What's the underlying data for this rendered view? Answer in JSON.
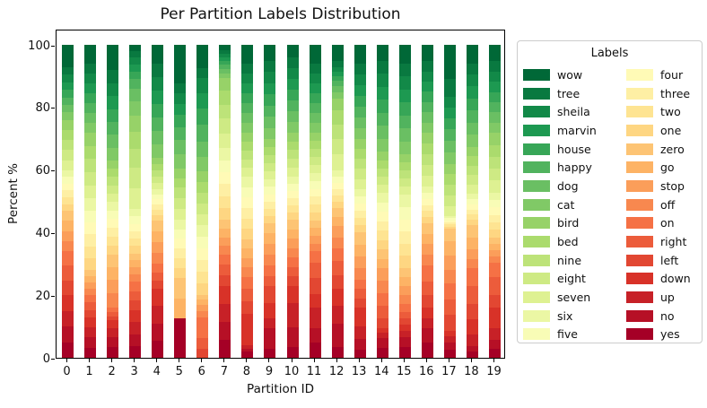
{
  "figure": {
    "background": "#ffffff"
  },
  "chart_data": {
    "type": "bar",
    "stacked": true,
    "title": "Per Partition Labels Distribution",
    "xlabel": "Partition ID",
    "ylabel": "Percent %",
    "ylim": [
      0,
      105
    ],
    "yticks": [
      0,
      20,
      40,
      60,
      80,
      100
    ],
    "grid": false,
    "categories": [
      "0",
      "1",
      "2",
      "3",
      "4",
      "5",
      "6",
      "7",
      "8",
      "9",
      "10",
      "11",
      "12",
      "13",
      "14",
      "15",
      "16",
      "17",
      "18",
      "19"
    ],
    "legend": {
      "title": "Labels",
      "position": "outside-right",
      "columns": [
        [
          "wow",
          "tree",
          "sheila",
          "marvin",
          "house",
          "happy",
          "dog",
          "cat",
          "bird",
          "bed",
          "nine",
          "eight",
          "seven",
          "six",
          "five"
        ],
        [
          "four",
          "three",
          "two",
          "one",
          "zero",
          "go",
          "stop",
          "off",
          "on",
          "right",
          "left",
          "down",
          "up",
          "no",
          "yes"
        ]
      ]
    },
    "stack_order_bottom_to_top": [
      "yes",
      "no",
      "up",
      "down",
      "left",
      "right",
      "on",
      "off",
      "stop",
      "go",
      "zero",
      "one",
      "two",
      "three",
      "four",
      "five",
      "six",
      "seven",
      "eight",
      "nine",
      "bed",
      "bird",
      "cat",
      "dog",
      "happy",
      "house",
      "marvin",
      "sheila",
      "tree",
      "wow"
    ],
    "series": [
      {
        "name": "yes",
        "color": "#a50026",
        "values": [
          5,
          3.25,
          3.5,
          3.75,
          5.5,
          12.3,
          0,
          5.75,
          2,
          3,
          3.4,
          4.8,
          3.5,
          2.5,
          3.2,
          3.5,
          5,
          2.5,
          2,
          2.9
        ]
      },
      {
        "name": "no",
        "color": "#b61026",
        "values": [
          5,
          3.25,
          3,
          3.75,
          5.5,
          0,
          0,
          5.75,
          1,
          6.5,
          6.4,
          4.7,
          7.5,
          3.5,
          3,
          3.2,
          4.5,
          2.3,
          1.8,
          2.8
        ]
      },
      {
        "name": "up",
        "color": "#c72127",
        "values": [
          5,
          3.25,
          3,
          3.75,
          5.5,
          0,
          0,
          5.75,
          1,
          3,
          7.6,
          6.7,
          5.5,
          4,
          1.7,
          2,
          3,
          2,
          3.8,
          3.8
        ]
      },
      {
        "name": "down",
        "color": "#d83228",
        "values": [
          5,
          3.25,
          2.5,
          3.75,
          5.5,
          0,
          0,
          5.75,
          10,
          5,
          5.6,
          4.3,
          5.5,
          6,
          1.6,
          1.8,
          3.5,
          1.9,
          4.8,
          6.7
        ]
      },
      {
        "name": "left",
        "color": "#e24732",
        "values": [
          4.7,
          2.33,
          1.3,
          3,
          2.67,
          0,
          2.8,
          3.33,
          4,
          5.5,
          3,
          5,
          4.5,
          3,
          3,
          2,
          4,
          5,
          4.7,
          3.8
        ]
      },
      {
        "name": "right",
        "color": "#ec5c3b",
        "values": [
          4.7,
          2.33,
          1.3,
          3,
          2.67,
          0,
          3,
          3.33,
          4,
          3,
          3,
          5,
          4.5,
          3,
          4,
          2,
          4.5,
          5,
          5.8,
          5.7
        ]
      },
      {
        "name": "on",
        "color": "#f57145",
        "values": [
          4.6,
          2.34,
          1.4,
          3,
          2.66,
          0,
          6.2,
          3.34,
          4,
          3.5,
          3,
          3.5,
          4,
          3,
          4,
          2.6,
          5,
          5,
          5.7,
          4.8
        ]
      },
      {
        "name": "off",
        "color": "#f8884f",
        "values": [
          3.25,
          2,
          4.5,
          2.25,
          3.5,
          0,
          2,
          2.75,
          3,
          3.5,
          3,
          2.5,
          3.5,
          3.75,
          4,
          3,
          3.4,
          4.5,
          3,
          2
        ]
      },
      {
        "name": "stop",
        "color": "#fb9e5a",
        "values": [
          3.25,
          2,
          4.5,
          2.25,
          3.5,
          0,
          2,
          2.75,
          3,
          3.5,
          3,
          2.5,
          3.5,
          3.75,
          4,
          2.9,
          3.4,
          4.5,
          3,
          2
        ]
      },
      {
        "name": "go",
        "color": "#fdb365",
        "values": [
          3.25,
          2,
          4,
          2.25,
          3.5,
          6,
          1.5,
          2.75,
          3,
          3.25,
          3,
          2.5,
          3,
          3.75,
          3,
          2.9,
          3.3,
          4.5,
          3.9,
          2
        ]
      },
      {
        "name": "zero",
        "color": "#fdc474",
        "values": [
          3.25,
          2,
          4,
          2.25,
          3.5,
          6.5,
          1.5,
          2.75,
          3,
          3.25,
          3,
          2.5,
          3,
          3.75,
          3,
          2.8,
          3.3,
          4,
          3.9,
          2
        ]
      },
      {
        "name": "one",
        "color": "#fed682",
        "values": [
          2.17,
          3.83,
          2.83,
          2.33,
          1.67,
          3,
          3.5,
          3.83,
          3.33,
          2.33,
          2.33,
          2.5,
          2,
          2.33,
          3,
          3.9,
          2,
          0.7,
          1.67,
          2.4
        ]
      },
      {
        "name": "two",
        "color": "#fee492",
        "values": [
          2.17,
          3.83,
          2.83,
          2.33,
          1.67,
          3,
          3.5,
          3.83,
          3.33,
          2.33,
          2.33,
          2.5,
          2,
          2.33,
          3,
          3.9,
          2,
          0.7,
          1.67,
          2.4
        ]
      },
      {
        "name": "three",
        "color": "#feefa4",
        "values": [
          2.17,
          3.83,
          2.83,
          2.33,
          1.67,
          3,
          3.5,
          3.83,
          3.33,
          2.33,
          2.33,
          2.5,
          2,
          2.33,
          3,
          3.9,
          2,
          0.7,
          1.67,
          2.4
        ]
      },
      {
        "name": "four",
        "color": "#fffab6",
        "values": [
          2.17,
          3.83,
          2.83,
          2.33,
          1.67,
          3,
          3.5,
          3.83,
          3.33,
          2.33,
          2.33,
          2.5,
          2,
          2.33,
          3,
          3.9,
          2,
          0.7,
          1.67,
          2.4
        ]
      },
      {
        "name": "five",
        "color": "#f8fcb6",
        "values": [
          2.17,
          3.83,
          2.83,
          2.33,
          1.67,
          3,
          3.5,
          3.83,
          3.33,
          2.33,
          2.33,
          2.5,
          2,
          2.33,
          3,
          3.9,
          2,
          0.6,
          1.67,
          2.4
        ]
      },
      {
        "name": "six",
        "color": "#ebf7a4",
        "values": [
          2.17,
          3.83,
          2.83,
          2.33,
          1.67,
          3,
          3.5,
          3.83,
          3.33,
          2.33,
          2.33,
          2.5,
          2,
          2.33,
          3,
          3.9,
          2,
          0.6,
          1.67,
          2.4
        ]
      },
      {
        "name": "seven",
        "color": "#def192",
        "values": [
          3.2,
          4.2,
          2.6,
          6.5,
          2,
          3.3,
          3.2,
          4.7,
          2.8,
          2.6,
          2.8,
          2.6,
          5,
          3.2,
          2.6,
          2.6,
          3.4,
          3.4,
          3,
          3.8
        ]
      },
      {
        "name": "eight",
        "color": "#ceea84",
        "values": [
          3.2,
          4.2,
          2.6,
          6.5,
          2,
          3.3,
          3.2,
          4.7,
          2.8,
          2.6,
          2.8,
          2.6,
          5,
          3.2,
          2.6,
          2.6,
          3.4,
          3.4,
          3,
          3.8
        ]
      },
      {
        "name": "nine",
        "color": "#bde379",
        "values": [
          3.2,
          4.2,
          2.6,
          6,
          2,
          3.2,
          3.2,
          4.5,
          2.8,
          2.6,
          2.8,
          2.6,
          4.5,
          3.2,
          2.6,
          2.6,
          3.4,
          3.4,
          3,
          3.8
        ]
      },
      {
        "name": "bed",
        "color": "#abdb6d",
        "values": [
          3.2,
          4.2,
          2.6,
          5.5,
          2,
          3,
          3.2,
          4.5,
          2.8,
          2.6,
          2.8,
          2.6,
          4.5,
          3.2,
          2.6,
          2.6,
          3.4,
          3.3,
          3,
          3.8
        ]
      },
      {
        "name": "bird",
        "color": "#97d268",
        "values": [
          3.2,
          4.2,
          2.6,
          5,
          2,
          3,
          3.2,
          4,
          2.8,
          2.6,
          2.8,
          2.6,
          4,
          3.2,
          2.6,
          2.6,
          3.4,
          3.3,
          3,
          3.8
        ]
      },
      {
        "name": "cat",
        "color": "#80c966",
        "values": [
          2.43,
          3.14,
          4.14,
          4.5,
          4.29,
          4.5,
          4.5,
          1.5,
          3.2,
          3.57,
          3.43,
          3.14,
          2,
          3.43,
          4.14,
          4.14,
          3.29,
          3.8,
          3.86,
          3.29
        ]
      },
      {
        "name": "dog",
        "color": "#6abf63",
        "values": [
          2.43,
          3.14,
          4.14,
          4,
          4.29,
          4.3,
          4.5,
          1.4,
          3.2,
          3.57,
          3.43,
          3.14,
          1.8,
          3.43,
          4.14,
          4.14,
          3.29,
          3.7,
          3.86,
          3.29
        ]
      },
      {
        "name": "happy",
        "color": "#51b35e",
        "values": [
          2.43,
          3.14,
          4.14,
          3,
          4.29,
          4,
          5,
          1.3,
          3.2,
          3.57,
          3.43,
          3.14,
          1.7,
          3.43,
          4.14,
          4.14,
          3.29,
          3.6,
          3.86,
          3.29
        ]
      },
      {
        "name": "house",
        "color": "#37a657",
        "values": [
          2.43,
          3.14,
          4.14,
          2.5,
          4.29,
          3.8,
          5,
          1.2,
          3.2,
          3.57,
          3.43,
          3.14,
          1.6,
          3.43,
          4.14,
          4.14,
          3.29,
          3.5,
          3.86,
          3.29
        ]
      },
      {
        "name": "marvin",
        "color": "#1d9951",
        "values": [
          2.43,
          3.14,
          4.14,
          2.2,
          4.29,
          3.4,
          4.5,
          1.2,
          3.2,
          3.57,
          3.43,
          3.14,
          1.5,
          3.43,
          4.14,
          4.14,
          3.29,
          3.4,
          3.86,
          3.29
        ]
      },
      {
        "name": "sheila",
        "color": "#128948",
        "values": [
          2.43,
          3.14,
          4.14,
          2.1,
          4.29,
          3.2,
          4.5,
          1.2,
          3.2,
          3.57,
          3.43,
          3.14,
          1.4,
          3.43,
          4.14,
          4.14,
          3.29,
          3.3,
          3.86,
          3.29
        ]
      },
      {
        "name": "tree",
        "color": "#097940",
        "values": [
          2.43,
          3.14,
          4.14,
          2,
          4.29,
          3,
          3,
          1.2,
          3,
          3.6,
          3.4,
          3.2,
          2,
          3.4,
          4.2,
          4.1,
          3.4,
          6,
          3.4,
          3.4
        ]
      },
      {
        "name": "wow",
        "color": "#006837",
        "values": [
          7,
          6,
          8,
          2,
          6,
          12,
          7,
          1.5,
          6,
          5,
          4,
          6,
          5,
          6,
          5,
          6,
          5,
          10.7,
          6,
          5
        ]
      }
    ]
  }
}
